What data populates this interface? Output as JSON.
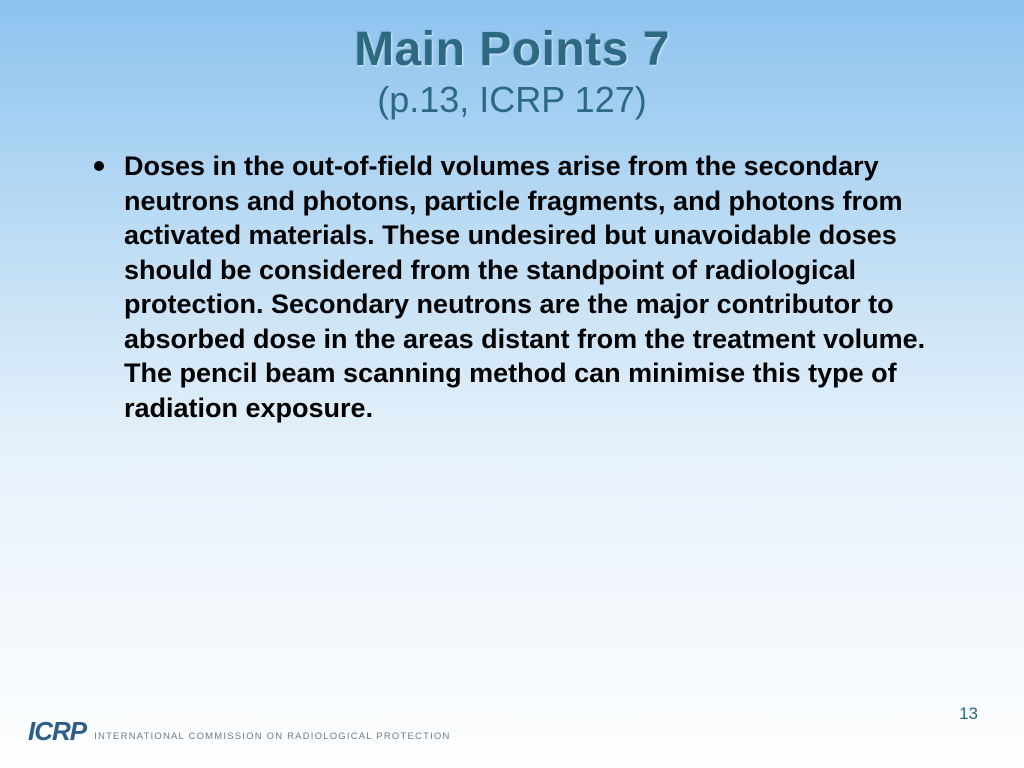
{
  "header": {
    "title": "Main Points 7",
    "subtitle": "(p.13, ICRP 127)",
    "title_color": "#2c6a82",
    "title_fontsize": 48,
    "subtitle_fontsize": 36
  },
  "body": {
    "bullets": [
      "Doses in the out-of-field volumes arise from the secondary neutrons and photons, particle fragments, and photons from activated materials.  These undesired but unavoidable doses should be considered from the standpoint of radiological protection. Secondary neutrons are the major contributor to absorbed dose in the areas distant from the treatment volume. The pencil beam scanning method can minimise this type of radiation exposure."
    ],
    "bullet_fontsize": 27,
    "bullet_fontweight": "bold",
    "bullet_color": "#000000"
  },
  "footer": {
    "logo_mark": "ICRP",
    "logo_text": "INTERNATIONAL COMMISSION ON RADIOLOGICAL PROTECTION",
    "logo_color": "#2d5d8a",
    "page_number": "13",
    "page_number_color": "#2c6a82"
  },
  "background": {
    "gradient_top": "#8cc3ef",
    "gradient_bottom": "#fdfefe"
  }
}
